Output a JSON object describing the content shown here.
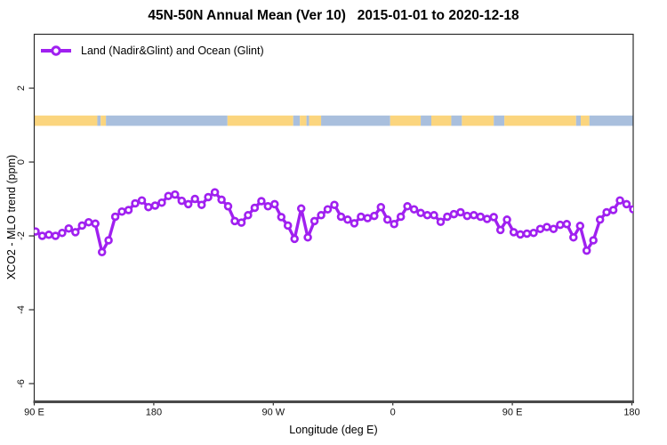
{
  "title": "45N-50N Annual Mean (Ver 10)   2015-01-01 to 2020-12-18",
  "legend": {
    "label": "Land (Nadir&Glint) and Ocean (Glint)"
  },
  "chart_data": {
    "type": "line",
    "title": "45N-50N Annual Mean (Ver 10)   2015-01-01 to 2020-12-18",
    "xlabel": "Longitude (deg E)",
    "ylabel": "XCO2 - MLO trend (ppm)",
    "xlim": [
      90,
      541
    ],
    "ylim": [
      -6.47,
      3.46
    ],
    "grid": false,
    "legend_position": "top-left-inside",
    "x_ticks": [
      {
        "value": 90,
        "label": "90 E"
      },
      {
        "value": 180,
        "label": "180"
      },
      {
        "value": 270,
        "label": "90 W"
      },
      {
        "value": 360,
        "label": "0"
      },
      {
        "value": 450,
        "label": "90 E"
      },
      {
        "value": 540,
        "label": "180"
      }
    ],
    "y_ticks": [
      {
        "value": 2,
        "label": "2"
      },
      {
        "value": 0,
        "label": "0"
      },
      {
        "value": -2,
        "label": "-2"
      },
      {
        "value": -4,
        "label": "-4"
      },
      {
        "value": -6,
        "label": "-6"
      }
    ],
    "series": [
      {
        "name": "Land (Nadir&Glint) and Ocean (Glint)",
        "color": "#A020F0",
        "marker": "open-circle",
        "x_start": 91,
        "x_step": 5,
        "values": [
          -1.88,
          -2.0,
          -1.97,
          -2.0,
          -1.92,
          -1.8,
          -1.9,
          -1.72,
          -1.63,
          -1.67,
          -2.44,
          -2.12,
          -1.48,
          -1.34,
          -1.3,
          -1.12,
          -1.04,
          -1.22,
          -1.18,
          -1.1,
          -0.92,
          -0.88,
          -1.05,
          -1.14,
          -1.0,
          -1.16,
          -0.95,
          -0.82,
          -1.02,
          -1.2,
          -1.6,
          -1.64,
          -1.44,
          -1.24,
          -1.06,
          -1.2,
          -1.14,
          -1.49,
          -1.72,
          -2.08,
          -1.26,
          -2.04,
          -1.6,
          -1.44,
          -1.28,
          -1.16,
          -1.48,
          -1.56,
          -1.66,
          -1.48,
          -1.52,
          -1.46,
          -1.22,
          -1.56,
          -1.68,
          -1.48,
          -1.2,
          -1.28,
          -1.38,
          -1.44,
          -1.44,
          -1.62,
          -1.48,
          -1.41,
          -1.36,
          -1.46,
          -1.44,
          -1.48,
          -1.54,
          -1.49,
          -1.84,
          -1.56,
          -1.9,
          -1.96,
          -1.94,
          -1.92,
          -1.81,
          -1.76,
          -1.81,
          -1.7,
          -1.68,
          -2.04,
          -1.73,
          -2.4,
          -2.12,
          -1.56,
          -1.36,
          -1.3,
          -1.04,
          -1.14,
          -1.28
        ]
      }
    ],
    "surface_band": {
      "description": "land/ocean strip",
      "y_from": 0.98,
      "y_to": 1.26,
      "land_color": "#FBD57E",
      "ocean_color": "#A9BFDD",
      "segments": [
        {
          "from": 90,
          "to": 137.5,
          "type": "land"
        },
        {
          "from": 137.5,
          "to": 140,
          "type": "ocean"
        },
        {
          "from": 140,
          "to": 144,
          "type": "land"
        },
        {
          "from": 144,
          "to": 235.5,
          "type": "ocean"
        },
        {
          "from": 235.5,
          "to": 285,
          "type": "land"
        },
        {
          "from": 285,
          "to": 290,
          "type": "ocean"
        },
        {
          "from": 290,
          "to": 295,
          "type": "land"
        },
        {
          "from": 295,
          "to": 297,
          "type": "ocean"
        },
        {
          "from": 297,
          "to": 306,
          "type": "land"
        },
        {
          "from": 306,
          "to": 358,
          "type": "ocean"
        },
        {
          "from": 358,
          "to": 381,
          "type": "land"
        },
        {
          "from": 381,
          "to": 389,
          "type": "ocean"
        },
        {
          "from": 389,
          "to": 404,
          "type": "land"
        },
        {
          "from": 404,
          "to": 412,
          "type": "ocean"
        },
        {
          "from": 412,
          "to": 436,
          "type": "land"
        },
        {
          "from": 436,
          "to": 444,
          "type": "ocean"
        },
        {
          "from": 444,
          "to": 498,
          "type": "land"
        },
        {
          "from": 498,
          "to": 501.5,
          "type": "ocean"
        },
        {
          "from": 501.5,
          "to": 508,
          "type": "land"
        },
        {
          "from": 508,
          "to": 541,
          "type": "ocean"
        }
      ]
    },
    "axis_color": "#2b2b2b",
    "bottom_axis_color": "#4a4a4a"
  }
}
